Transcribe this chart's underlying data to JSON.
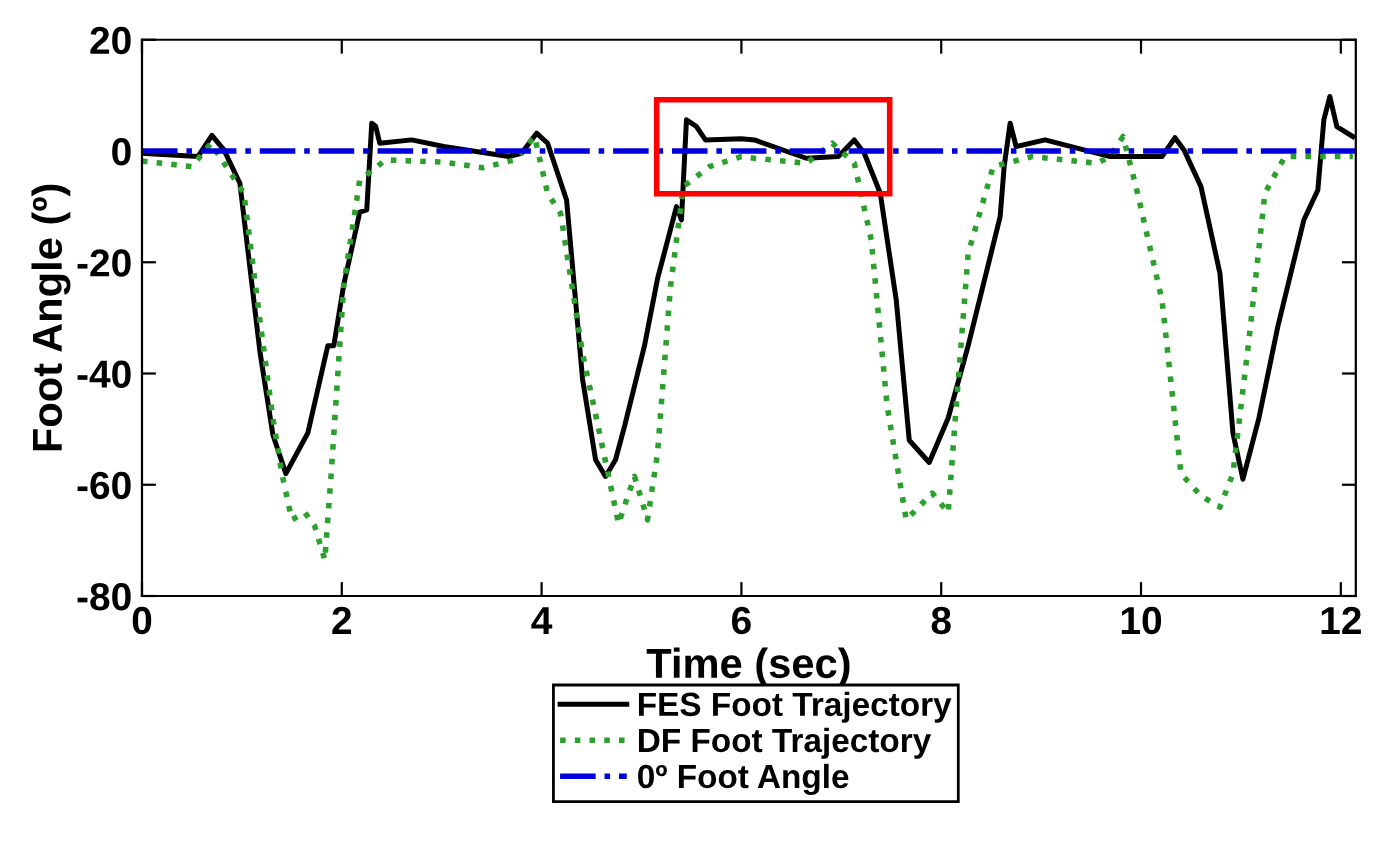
{
  "chart_data": {
    "type": "line",
    "xlabel": "Time (sec)",
    "ylabel": "Foot Angle (º)",
    "xlim": [
      0,
      12.15
    ],
    "xticks": [
      0,
      2,
      4,
      6,
      8,
      10,
      12
    ],
    "ylim": [
      -80,
      20
    ],
    "yticks": [
      -80,
      -60,
      -40,
      -20,
      0,
      20
    ],
    "grid": false,
    "legend": "bottom",
    "marker": "none",
    "series": [
      {
        "name": "FES Foot Trajectory",
        "color": "#000000",
        "line_style": "solid",
        "x": [
          0,
          0.56,
          0.7,
          0.82,
          0.98,
          1.18,
          1.31,
          1.44,
          1.66,
          1.86,
          1.92,
          2.02,
          2.18,
          2.25,
          2.3,
          2.34,
          2.38,
          2.7,
          3.02,
          3.67,
          3.8,
          3.95,
          4.06,
          4.25,
          4.41,
          4.54,
          4.64,
          4.74,
          4.83,
          5.03,
          5.16,
          5.35,
          5.4,
          5.45,
          5.55,
          5.64,
          6.0,
          6.13,
          6.65,
          6.97,
          7.13,
          7.23,
          7.39,
          7.55,
          7.68,
          7.88,
          8.07,
          8.27,
          8.59,
          8.63,
          8.69,
          8.75,
          9.04,
          9.69,
          10.21,
          10.34,
          10.43,
          10.6,
          10.79,
          10.92,
          11.02,
          11.18,
          11.37,
          11.63,
          11.77,
          11.83,
          11.89,
          11.96,
          12.12
        ],
        "values": [
          -0.4,
          -1,
          2.8,
          0.2,
          -5.8,
          -36,
          -51,
          -58,
          -50.7,
          -35,
          -35,
          -24,
          -11,
          -10.6,
          5,
          4.4,
          1.4,
          2,
          0.8,
          -1,
          -0.4,
          3.2,
          1.4,
          -8.8,
          -41,
          -55.5,
          -58.5,
          -55.5,
          -49.5,
          -35,
          -23,
          -10,
          -12.4,
          5.6,
          4.4,
          2,
          2.2,
          2,
          -1.3,
          -1,
          2,
          -0.4,
          -7.6,
          -26.8,
          -52,
          -56,
          -48,
          -35,
          -11.8,
          -2.8,
          5,
          0.8,
          2,
          -1,
          -1,
          2.4,
          0.2,
          -6.4,
          -22,
          -50.7,
          -59,
          -48,
          -31.5,
          -12.4,
          -7,
          5.6,
          9.8,
          4.4,
          2.6
        ]
      },
      {
        "name": "DF Foot Trajectory",
        "color": "#2ca02c",
        "line_style": "dotted",
        "x": [
          0,
          0.5,
          0.69,
          1.02,
          1.18,
          1.31,
          1.4,
          1.5,
          1.63,
          1.73,
          1.83,
          1.89,
          2.02,
          2.18,
          2.44,
          3.02,
          3.41,
          3.73,
          3.93,
          4.06,
          4.19,
          4.41,
          4.58,
          4.77,
          4.93,
          5.06,
          5.16,
          5.29,
          5.42,
          5.68,
          6.0,
          6.13,
          6.65,
          6.91,
          7.13,
          7.3,
          7.46,
          7.65,
          7.91,
          8.07,
          8.14,
          8.27,
          8.52,
          8.91,
          9.56,
          9.69,
          9.82,
          9.95,
          10.21,
          10.4,
          10.6,
          10.79,
          10.92,
          11.08,
          11.24,
          11.44,
          12.12
        ],
        "values": [
          -1.8,
          -2.8,
          1.4,
          -7.6,
          -30.4,
          -48,
          -58,
          -66.3,
          -65,
          -67.5,
          -73.5,
          -59,
          -24,
          -5.2,
          -1.6,
          -2,
          -3,
          -1.6,
          2.6,
          -7.6,
          -11.2,
          -36.4,
          -50.7,
          -67,
          -58.5,
          -66.3,
          -54.4,
          -24.4,
          -6.4,
          -2.8,
          -1,
          -1.3,
          -2.2,
          1.4,
          -2.2,
          -16,
          -46,
          -66.3,
          -61.5,
          -65,
          -48.3,
          -18.4,
          -2.8,
          -1,
          -2.2,
          -1,
          2.6,
          -6.4,
          -26.8,
          -58,
          -62,
          -64,
          -58,
          -34,
          -7.6,
          -1,
          -1
        ]
      }
    ],
    "ref_lines": [
      {
        "axis": "y",
        "value": 0,
        "label": "0º Foot Angle",
        "color": "#0000dd",
        "line_style": "dashdot"
      }
    ]
  }
}
